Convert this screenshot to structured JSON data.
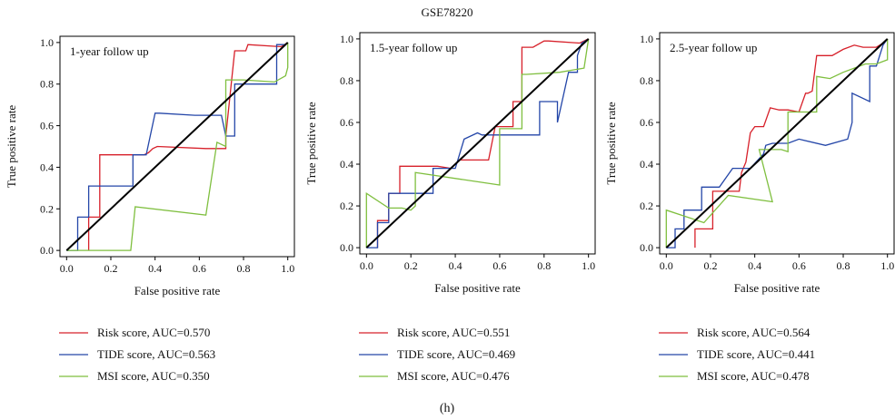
{
  "figure_title": "GSE78220",
  "panel_label": "(h)",
  "colors": {
    "risk": "#d7202a",
    "tide": "#2446a8",
    "msi": "#7fbf3f",
    "diagonal": "#000000"
  },
  "chart_data": [
    {
      "type": "line",
      "title": "1-year follow up",
      "xlabel": "False positive rate",
      "ylabel": "True positive rate",
      "xlim": [
        -0.03,
        1.03
      ],
      "ylim": [
        -0.03,
        1.03
      ],
      "xticks": [
        0.0,
        0.2,
        0.4,
        0.6,
        0.8,
        1.0
      ],
      "yticks": [
        0.0,
        0.2,
        0.4,
        0.6,
        0.8,
        1.0
      ],
      "tick_labels": [
        "0.0",
        "0.2",
        "0.4",
        "0.6",
        "0.8",
        "1.0"
      ],
      "series": [
        {
          "name": "Risk score, AUC=0.570",
          "x": [
            0.1,
            0.1,
            0.15,
            0.15,
            0.35,
            0.37,
            0.39,
            0.41,
            0.63,
            0.65,
            0.72,
            0.72,
            0.76,
            0.76,
            0.81,
            0.82,
            0.97,
            1.0
          ],
          "y": [
            0.0,
            0.16,
            0.16,
            0.46,
            0.46,
            0.47,
            0.49,
            0.5,
            0.49,
            0.49,
            0.49,
            0.55,
            0.96,
            0.96,
            0.96,
            0.99,
            0.98,
            1.0
          ]
        },
        {
          "name": "TIDE score, AUC=0.563",
          "x": [
            0.0,
            0.05,
            0.05,
            0.1,
            0.1,
            0.3,
            0.3,
            0.36,
            0.4,
            0.42,
            0.58,
            0.7,
            0.72,
            0.72,
            0.76,
            0.76,
            0.82,
            0.95,
            0.95,
            0.99,
            1.0
          ],
          "y": [
            0.0,
            0.0,
            0.16,
            0.16,
            0.31,
            0.31,
            0.46,
            0.46,
            0.66,
            0.66,
            0.65,
            0.65,
            0.55,
            0.55,
            0.55,
            0.8,
            0.8,
            0.8,
            0.99,
            0.99,
            1.0
          ]
        },
        {
          "name": "MSI score, AUC=0.350",
          "x": [
            0.0,
            0.29,
            0.29,
            0.31,
            0.63,
            0.63,
            0.68,
            0.68,
            0.72,
            0.72,
            0.8,
            0.94,
            0.99,
            1.0,
            1.0
          ],
          "y": [
            0.0,
            0.0,
            0.0,
            0.21,
            0.17,
            0.17,
            0.52,
            0.52,
            0.5,
            0.82,
            0.82,
            0.81,
            0.84,
            0.88,
            1.0
          ]
        }
      ]
    },
    {
      "type": "line",
      "title": "1.5-year follow up",
      "xlabel": "False positive rate",
      "ylabel": "True positive rate",
      "xlim": [
        -0.03,
        1.03
      ],
      "ylim": [
        -0.03,
        1.03
      ],
      "xticks": [
        0.0,
        0.2,
        0.4,
        0.6,
        0.8,
        1.0
      ],
      "yticks": [
        0.0,
        0.2,
        0.4,
        0.6,
        0.8,
        1.0
      ],
      "tick_labels": [
        "0.0",
        "0.2",
        "0.4",
        "0.6",
        "0.8",
        "1.0"
      ],
      "series": [
        {
          "name": "Risk score, AUC=0.551",
          "x": [
            0.05,
            0.05,
            0.1,
            0.1,
            0.15,
            0.15,
            0.3,
            0.32,
            0.38,
            0.4,
            0.42,
            0.55,
            0.58,
            0.58,
            0.66,
            0.66,
            0.7,
            0.7,
            0.75,
            0.75,
            0.8,
            0.82,
            0.96,
            1.0
          ],
          "y": [
            0.0,
            0.13,
            0.13,
            0.26,
            0.26,
            0.39,
            0.39,
            0.39,
            0.38,
            0.4,
            0.42,
            0.42,
            0.58,
            0.58,
            0.58,
            0.7,
            0.7,
            0.96,
            0.96,
            0.96,
            0.99,
            0.99,
            0.98,
            1.0
          ]
        },
        {
          "name": "TIDE score, AUC=0.469",
          "x": [
            0.0,
            0.05,
            0.05,
            0.1,
            0.1,
            0.3,
            0.3,
            0.4,
            0.44,
            0.5,
            0.52,
            0.78,
            0.78,
            0.86,
            0.86,
            0.91,
            0.94,
            0.95,
            0.95,
            0.97,
            1.0
          ],
          "y": [
            0.0,
            0.0,
            0.12,
            0.12,
            0.26,
            0.26,
            0.38,
            0.38,
            0.52,
            0.55,
            0.54,
            0.54,
            0.7,
            0.7,
            0.6,
            0.84,
            0.84,
            0.84,
            0.92,
            0.98,
            1.0
          ]
        },
        {
          "name": "MSI score, AUC=0.476",
          "x": [
            0.0,
            0.0,
            0.1,
            0.16,
            0.2,
            0.22,
            0.22,
            0.6,
            0.6,
            0.7,
            0.7,
            0.72,
            0.87,
            0.98,
            1.0
          ],
          "y": [
            0.0,
            0.26,
            0.19,
            0.19,
            0.18,
            0.2,
            0.36,
            0.3,
            0.57,
            0.57,
            0.83,
            0.83,
            0.84,
            0.86,
            1.0
          ]
        }
      ]
    },
    {
      "type": "line",
      "title": "2.5-year follow up",
      "xlabel": "False positive rate",
      "ylabel": "True positive rate",
      "xlim": [
        -0.03,
        1.03
      ],
      "ylim": [
        -0.03,
        1.03
      ],
      "xticks": [
        0.0,
        0.2,
        0.4,
        0.6,
        0.8,
        1.0
      ],
      "yticks": [
        0.0,
        0.2,
        0.4,
        0.6,
        0.8,
        1.0
      ],
      "tick_labels": [
        "0.0",
        "0.2",
        "0.4",
        "0.6",
        "0.8",
        "1.0"
      ],
      "series": [
        {
          "name": "Risk score, AUC=0.564",
          "x": [
            0.13,
            0.13,
            0.21,
            0.21,
            0.27,
            0.27,
            0.33,
            0.34,
            0.36,
            0.38,
            0.4,
            0.44,
            0.47,
            0.51,
            0.55,
            0.55,
            0.6,
            0.6,
            0.63,
            0.64,
            0.66,
            0.66,
            0.68,
            0.69,
            0.75,
            0.8,
            0.85,
            0.89,
            0.95,
            0.98,
            1.0
          ],
          "y": [
            0.0,
            0.09,
            0.09,
            0.27,
            0.27,
            0.27,
            0.27,
            0.36,
            0.41,
            0.55,
            0.58,
            0.58,
            0.67,
            0.66,
            0.66,
            0.66,
            0.65,
            0.65,
            0.74,
            0.74,
            0.75,
            0.75,
            0.92,
            0.92,
            0.92,
            0.95,
            0.97,
            0.96,
            0.96,
            0.98,
            1.0
          ]
        },
        {
          "name": "TIDE score, AUC=0.441",
          "x": [
            0.0,
            0.04,
            0.04,
            0.08,
            0.08,
            0.16,
            0.16,
            0.24,
            0.24,
            0.3,
            0.3,
            0.38,
            0.44,
            0.45,
            0.48,
            0.55,
            0.6,
            0.72,
            0.82,
            0.84,
            0.84,
            0.92,
            0.92,
            0.95,
            0.98,
            1.0
          ],
          "y": [
            0.0,
            0.0,
            0.09,
            0.09,
            0.18,
            0.18,
            0.29,
            0.29,
            0.29,
            0.38,
            0.38,
            0.38,
            0.45,
            0.49,
            0.5,
            0.5,
            0.52,
            0.49,
            0.52,
            0.6,
            0.74,
            0.7,
            0.87,
            0.87,
            0.97,
            1.0
          ]
        },
        {
          "name": "MSI score, AUC=0.478",
          "x": [
            0.0,
            0.0,
            0.17,
            0.17,
            0.28,
            0.28,
            0.48,
            0.42,
            0.52,
            0.55,
            0.55,
            0.63,
            0.66,
            0.68,
            0.68,
            0.74,
            0.8,
            0.85,
            0.9,
            0.95,
            1.0,
            1.0
          ],
          "y": [
            0.0,
            0.18,
            0.12,
            0.12,
            0.25,
            0.25,
            0.22,
            0.47,
            0.47,
            0.46,
            0.65,
            0.65,
            0.65,
            0.65,
            0.82,
            0.81,
            0.84,
            0.86,
            0.88,
            0.88,
            0.9,
            1.0
          ]
        }
      ]
    }
  ]
}
